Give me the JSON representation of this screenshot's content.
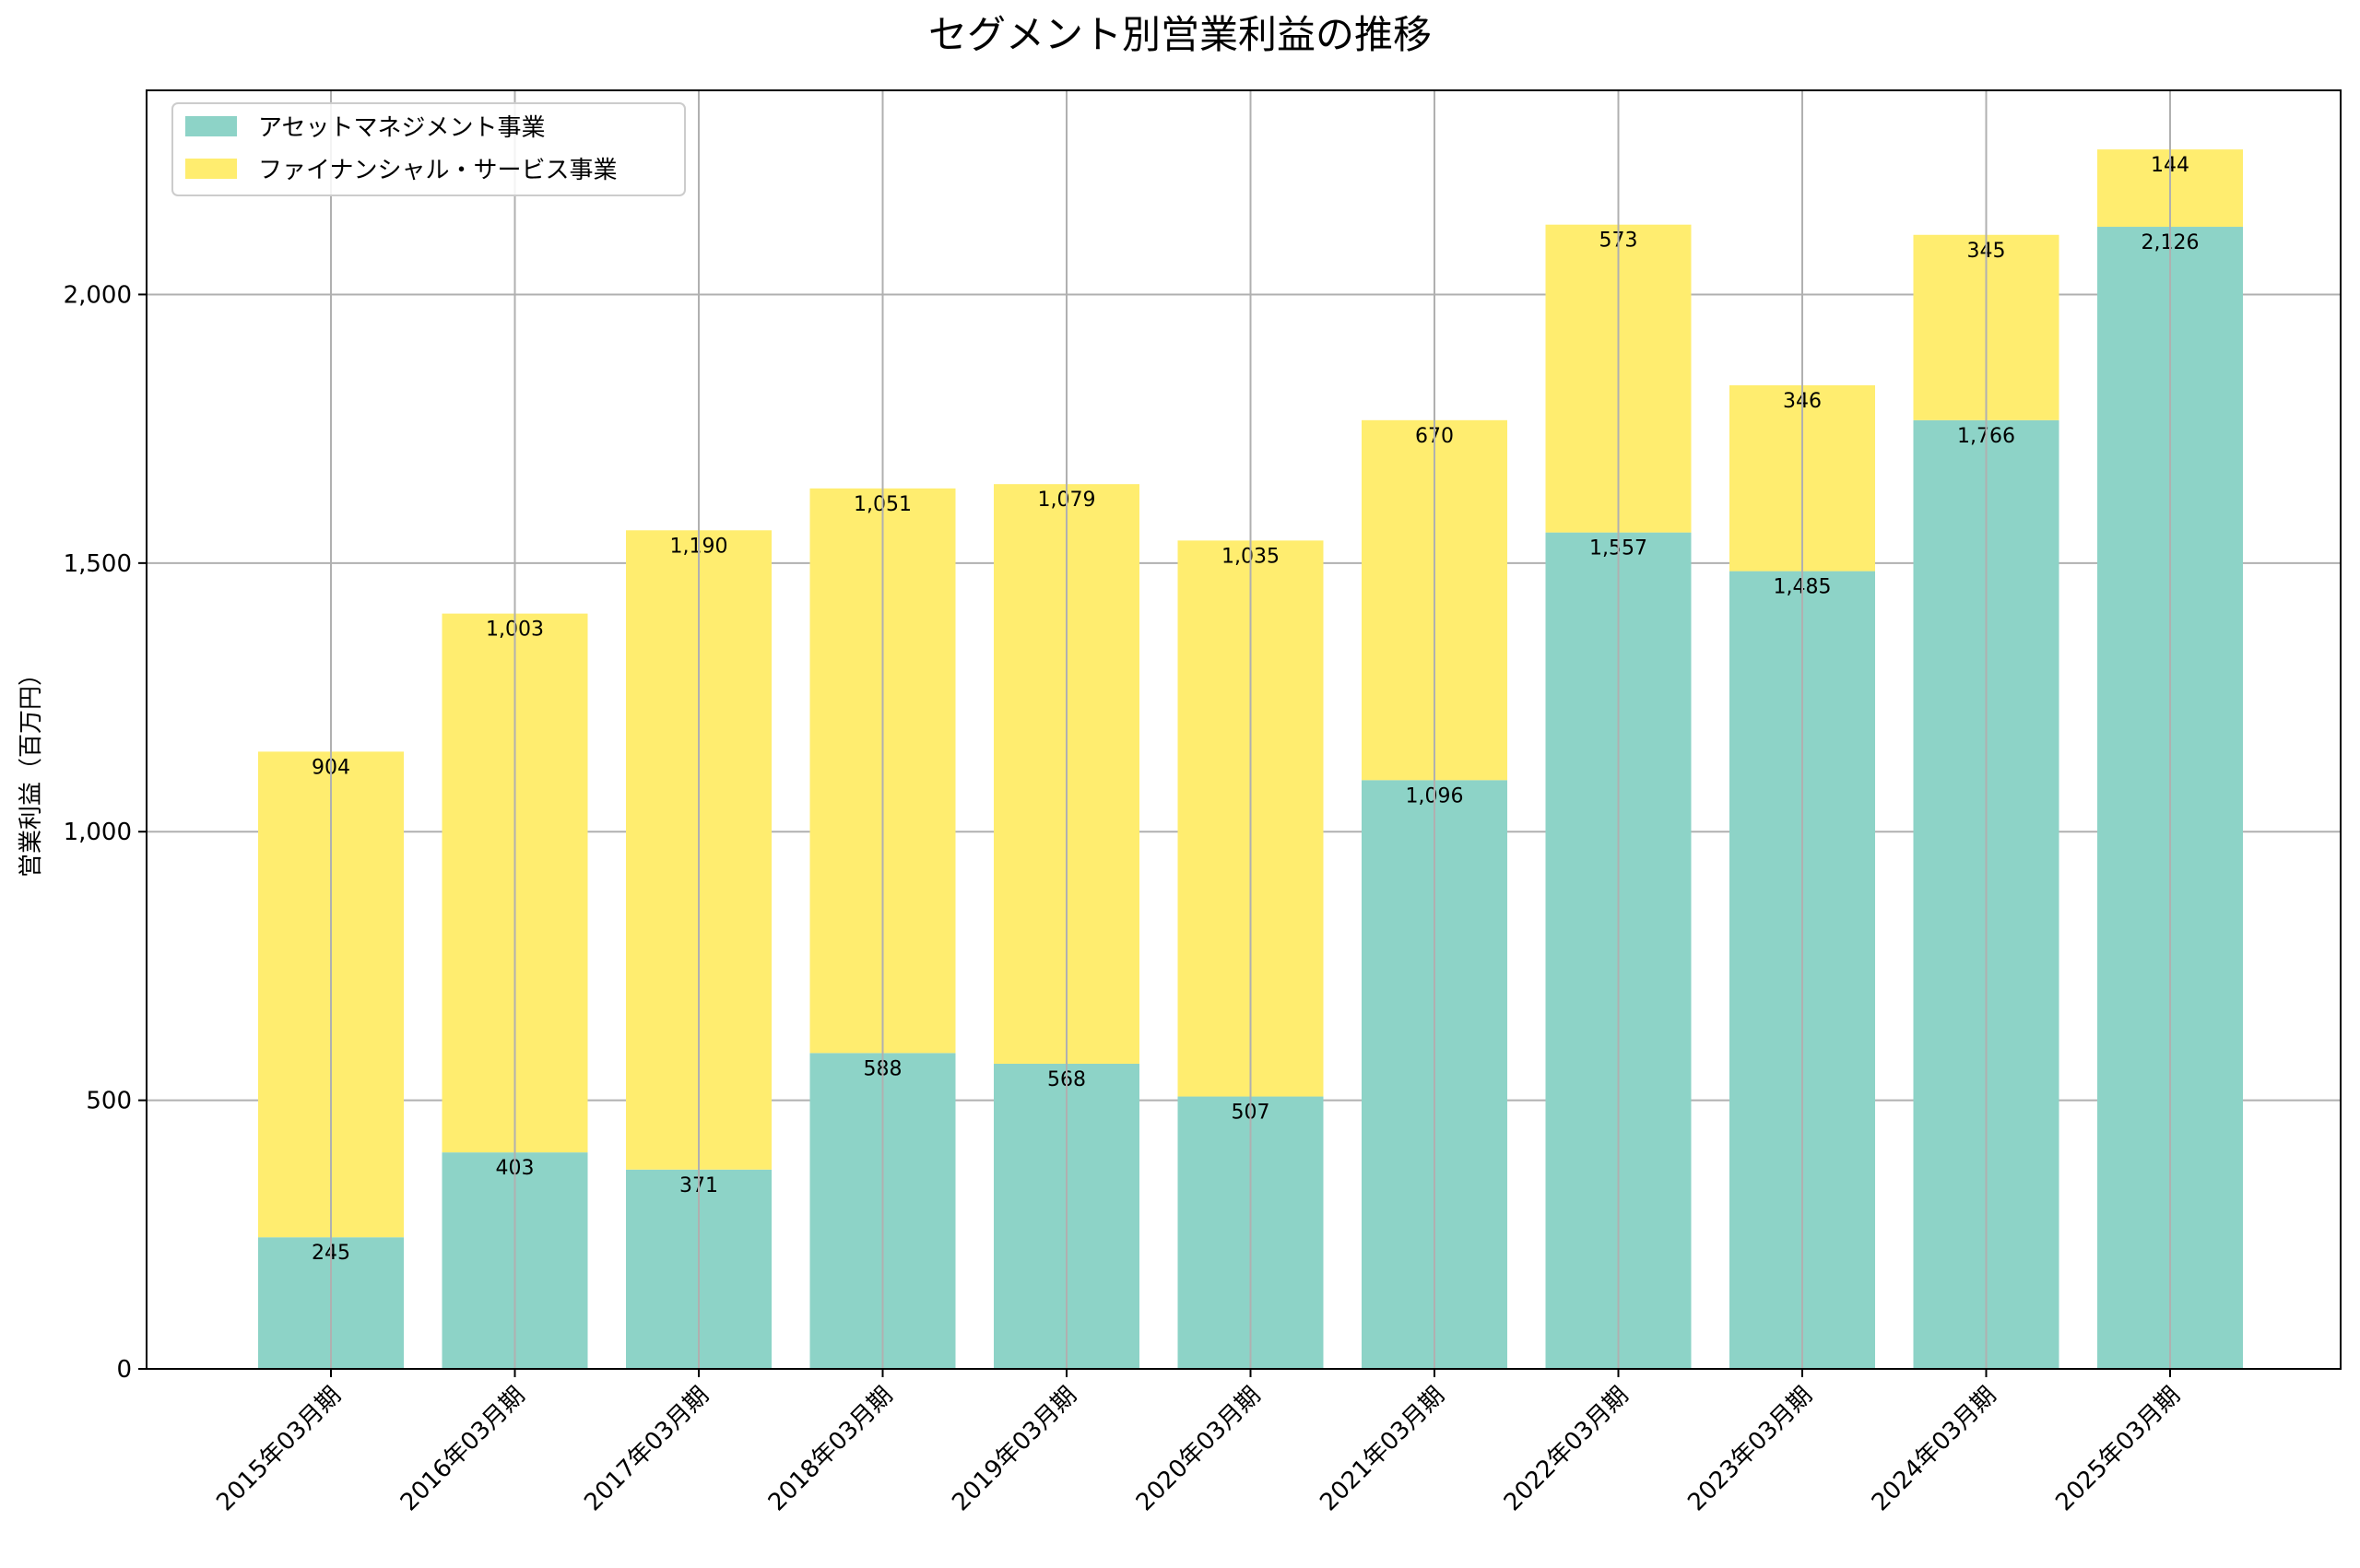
{
  "chart_data": {
    "type": "bar",
    "stacked": true,
    "title": "セグメント別営業利益の推移",
    "xlabel": "",
    "ylabel": "営業利益（百万円）",
    "ylim": [
      0,
      2380
    ],
    "yticks": [
      0,
      500,
      1000,
      1500,
      2000
    ],
    "ytick_labels": [
      "0",
      "500",
      "1,000",
      "1,500",
      "2,000"
    ],
    "grid": true,
    "legend_position": "top-left",
    "categories": [
      "2015年03月期",
      "2016年03月期",
      "2017年03月期",
      "2018年03月期",
      "2019年03月期",
      "2020年03月期",
      "2021年03月期",
      "2022年03月期",
      "2023年03月期",
      "2024年03月期",
      "2025年03月期"
    ],
    "series": [
      {
        "name": "アセットマネジメント事業",
        "color": "#8dd3c7",
        "values": [
          245,
          403,
          371,
          588,
          568,
          507,
          1096,
          1557,
          1485,
          1766,
          2126
        ],
        "labels": [
          "245",
          "403",
          "371",
          "588",
          "568",
          "507",
          "1,096",
          "1,557",
          "1,485",
          "1,766",
          "2,126"
        ]
      },
      {
        "name": "ファイナンシャル・サービス事業",
        "color": "#ffed6f",
        "values": [
          904,
          1003,
          1190,
          1051,
          1079,
          1035,
          670,
          573,
          346,
          345,
          144
        ],
        "labels": [
          "904",
          "1,003",
          "1,190",
          "1,051",
          "1,079",
          "1,035",
          "670",
          "573",
          "346",
          "345",
          "144"
        ]
      }
    ]
  }
}
